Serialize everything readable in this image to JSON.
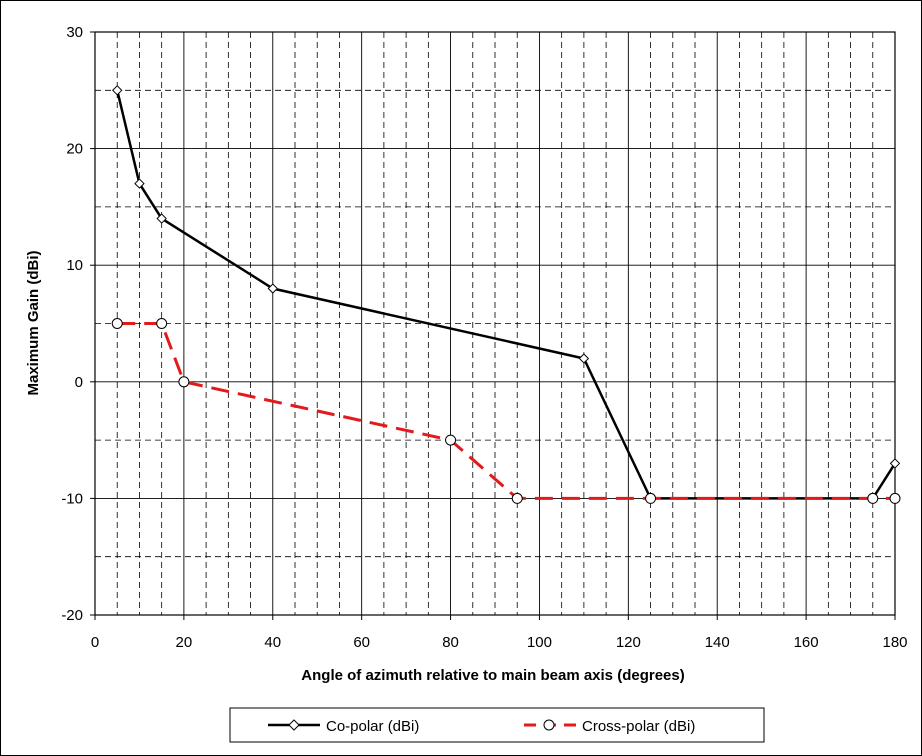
{
  "chart_data": {
    "type": "line",
    "title": "",
    "xlabel": "Angle of azimuth relative to main beam axis (degrees)",
    "ylabel": "Maximum Gain (dBi)",
    "xlim": [
      0,
      180
    ],
    "ylim": [
      -20,
      30
    ],
    "x_major_ticks": [
      0,
      20,
      40,
      60,
      80,
      100,
      120,
      140,
      160,
      180
    ],
    "y_major_ticks": [
      -20,
      -10,
      0,
      10,
      20,
      30
    ],
    "x_tick_labels": [
      "0",
      "20",
      "40",
      "60",
      "80",
      "100",
      "120",
      "140",
      "160",
      "180"
    ],
    "y_tick_labels": [
      "-20",
      "-10",
      "0",
      "10",
      "20",
      "30"
    ],
    "x_minor_ticks": [
      5,
      10,
      15,
      25,
      30,
      35,
      45,
      50,
      55,
      65,
      70,
      75,
      85,
      90,
      95,
      105,
      110,
      115,
      125,
      130,
      135,
      145,
      150,
      155,
      165,
      170,
      175
    ],
    "y_minor_ticks": [
      -15,
      -5,
      5,
      15,
      25
    ],
    "grid": true,
    "legend": "bottom",
    "series": [
      {
        "name": "Co-polar (dBi)",
        "color": "#000000",
        "line": "solid",
        "marker": "diamond",
        "x": [
          5,
          10,
          15,
          40,
          110,
          125,
          175,
          180
        ],
        "y": [
          25,
          17,
          14,
          8,
          2,
          -10,
          -10,
          -7
        ]
      },
      {
        "name": "Cross-polar (dBi)",
        "color": "#e31a1c",
        "line": "dashed",
        "marker": "circle",
        "x": [
          5,
          15,
          20,
          80,
          95,
          125,
          175,
          180
        ],
        "y": [
          5,
          5,
          0,
          -5,
          -10,
          -10,
          -10,
          -10
        ]
      }
    ]
  }
}
